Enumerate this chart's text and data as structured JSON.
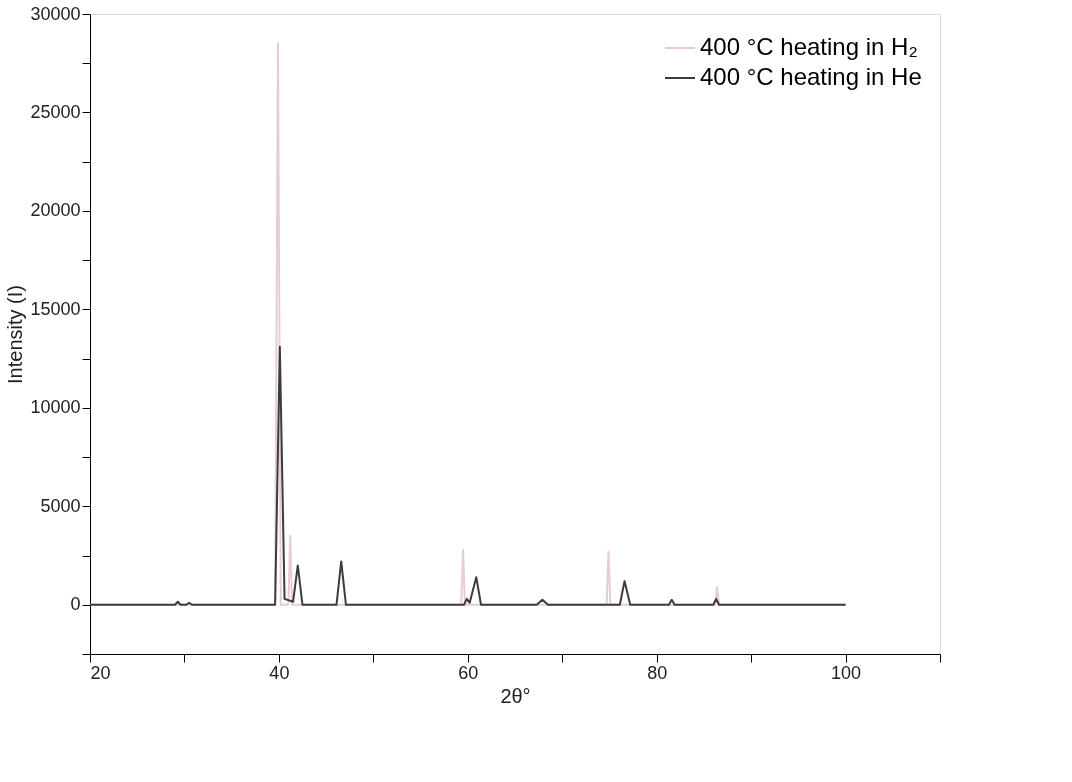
{
  "chart_data": {
    "type": "line",
    "xlabel": "2θ°",
    "ylabel": "Intensity (I)",
    "xlim": [
      20,
      110
    ],
    "xticks": [
      20,
      {
        "value": 30,
        "label": null
      },
      40,
      {
        "value": 50,
        "label": null
      },
      60,
      {
        "value": 70,
        "label": null
      },
      80,
      {
        "value": 90,
        "label": null
      },
      100,
      {
        "value": 110,
        "label": null
      }
    ],
    "ylim": [
      -2500,
      30000
    ],
    "yticks": [
      {
        "value": -2500,
        "label": null
      },
      0,
      {
        "value": 2500,
        "label": null
      },
      5000,
      {
        "value": 7500,
        "label": null
      },
      10000,
      {
        "value": 12500,
        "label": null
      },
      15000,
      {
        "value": 17500,
        "label": null
      },
      20000,
      {
        "value": 22500,
        "label": null
      },
      25000,
      {
        "value": 27500,
        "label": null
      },
      30000
    ],
    "grid": false,
    "legend": "top right",
    "marker": "none",
    "line_style": "solid",
    "series": [
      {
        "name": "400 °C heating in H₂",
        "color": "#e8ccd2",
        "x": [
          20,
          39.6,
          39.9,
          40.2,
          41.0,
          41.2,
          41.4,
          59.3,
          59.5,
          59.7,
          74.7,
          74.9,
          75.1,
          86.2,
          86.4,
          86.6,
          100
        ],
        "values": [
          0,
          0,
          28500,
          0,
          0,
          3500,
          0,
          0,
          2800,
          0,
          0,
          2700,
          0,
          0,
          900,
          0,
          0
        ]
      },
      {
        "name": "400 °C heating in He",
        "color": "#3c3c3c",
        "x": [
          20,
          29.0,
          29.3,
          29.6,
          30.2,
          30.5,
          30.8,
          39.6,
          40.1,
          40.6,
          41.5,
          42.0,
          42.5,
          46.1,
          46.6,
          47.1,
          59.6,
          59.9,
          60.2,
          60.9,
          61.4,
          67.3,
          67.9,
          68.5,
          76.1,
          76.6,
          77.2,
          81.3,
          81.6,
          81.9,
          86.0,
          86.3,
          86.6,
          100
        ],
        "values": [
          0,
          0,
          150,
          0,
          0,
          100,
          0,
          0,
          13100,
          300,
          150,
          2000,
          0,
          0,
          2200,
          0,
          0,
          300,
          100,
          1400,
          0,
          0,
          250,
          0,
          0,
          1200,
          0,
          0,
          250,
          0,
          0,
          300,
          0,
          0
        ]
      }
    ]
  }
}
